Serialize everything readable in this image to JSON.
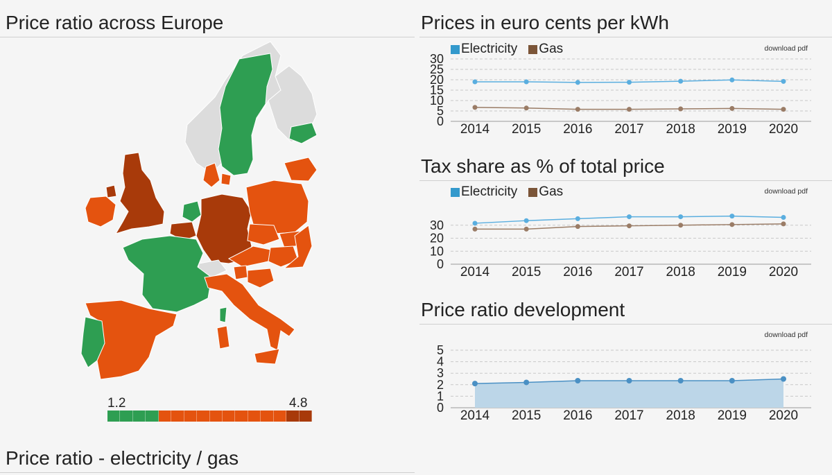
{
  "left": {
    "title": "Price ratio across Europe",
    "bottom_title": "Price ratio - electricity / gas",
    "scale": {
      "min_label": "1.2",
      "max_label": "4.8",
      "segments": [
        "#2e9e52",
        "#2e9e52",
        "#2e9e52",
        "#2e9e52",
        "#e4530f",
        "#e4530f",
        "#e4530f",
        "#e4530f",
        "#e4530f",
        "#e4530f",
        "#e4530f",
        "#e4530f",
        "#e4530f",
        "#e4530f",
        "#a83a0a",
        "#a83a0a"
      ]
    },
    "map_colors": {
      "low": "#2e9e52",
      "mid": "#e4530f",
      "high": "#a83a0a",
      "nodata": "#dcdcdc"
    }
  },
  "colors": {
    "electricity": "#3399cc",
    "electricity_line": "#5aaedf",
    "gas": "#7b5538",
    "gas_line": "#9a7c66",
    "area": "#bcd6e8",
    "area_line": "#4a90c4"
  },
  "charts": [
    {
      "title": "Prices in euro cents per kWh",
      "download": "download pdf",
      "legend": [
        "Electricity",
        "Gas"
      ],
      "chart_data": {
        "type": "line",
        "x": [
          "2014",
          "2015",
          "2016",
          "2017",
          "2018",
          "2019",
          "2020"
        ],
        "yticks": [
          "0",
          "5",
          "10",
          "15",
          "20",
          "25",
          "30"
        ],
        "ylim": [
          0,
          30
        ],
        "series": [
          {
            "name": "Electricity",
            "values": [
              19,
              19,
              18.7,
              18.8,
              19.3,
              19.9,
              19.2
            ]
          },
          {
            "name": "Gas",
            "values": [
              6.7,
              6.4,
              5.8,
              5.8,
              6.0,
              6.2,
              5.8
            ]
          }
        ]
      }
    },
    {
      "title": "Tax share as % of total price",
      "download": "download pdf",
      "legend": [
        "Electricity",
        "Gas"
      ],
      "chart_data": {
        "type": "line",
        "x": [
          "2014",
          "2015",
          "2016",
          "2017",
          "2018",
          "2019",
          "2020"
        ],
        "yticks": [
          "0",
          "10",
          "20",
          "30"
        ],
        "ylim": [
          0,
          40
        ],
        "series": [
          {
            "name": "Electricity",
            "values": [
              31.5,
              33.5,
              35,
              36.5,
              36.5,
              37,
              36
            ]
          },
          {
            "name": "Gas",
            "values": [
              27,
              27,
              29,
              29.5,
              30,
              30.5,
              31
            ]
          }
        ]
      }
    },
    {
      "title": "Price ratio development",
      "download": "download pdf",
      "legend": [],
      "chart_data": {
        "type": "area",
        "x": [
          "2014",
          "2015",
          "2016",
          "2017",
          "2018",
          "2019",
          "2020"
        ],
        "yticks": [
          "0",
          "1",
          "2",
          "3",
          "4",
          "5"
        ],
        "ylim": [
          0,
          5
        ],
        "series": [
          {
            "values": [
              2.1,
              2.2,
              2.35,
              2.35,
              2.35,
              2.35,
              2.5
            ]
          }
        ]
      }
    }
  ]
}
